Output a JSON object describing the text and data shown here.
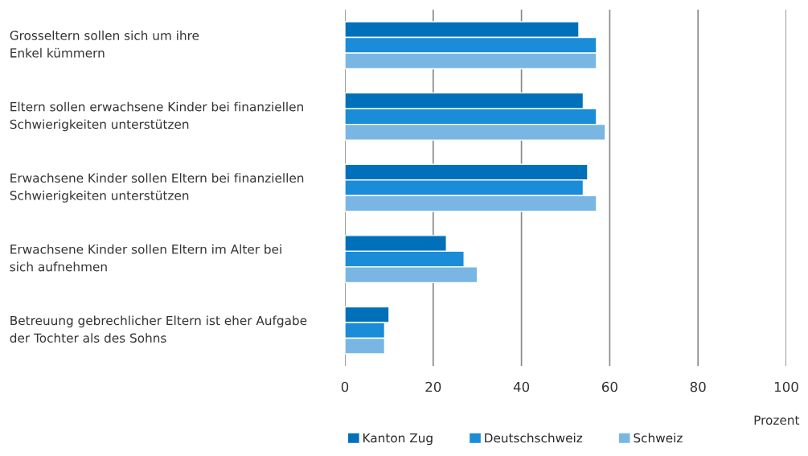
{
  "chart_data": {
    "type": "bar",
    "orientation": "horizontal",
    "xlabel": "Prozent",
    "categories": [
      "Grosseltern sollen sich um ihre\nEnkel kümmern",
      "Eltern sollen erwachsene Kinder bei finanziellen\nSchwierigkeiten unterstützen",
      "Erwachsene Kinder sollen Eltern bei finanziellen\nSchwierigkeiten unterstützen",
      "Erwachsene Kinder sollen Eltern im Alter bei\nsich aufnehmen",
      "Betreuung gebrechlicher Eltern ist eher Aufgabe\nder Tochter als des Sohns"
    ],
    "series": [
      {
        "name": "Kanton Zug",
        "color": "#0070bb",
        "values": [
          53,
          54,
          55,
          23,
          10
        ]
      },
      {
        "name": "Deutschschweiz",
        "color": "#1a8cd8",
        "values": [
          57,
          57,
          54,
          27,
          9
        ]
      },
      {
        "name": "Schweiz",
        "color": "#7ab6e3",
        "values": [
          57,
          59,
          57,
          30,
          9
        ]
      }
    ],
    "xlim": [
      0,
      100
    ],
    "xticks": [
      0,
      20,
      40,
      60,
      80,
      100
    ],
    "grid": "x",
    "legend": "bottom"
  }
}
